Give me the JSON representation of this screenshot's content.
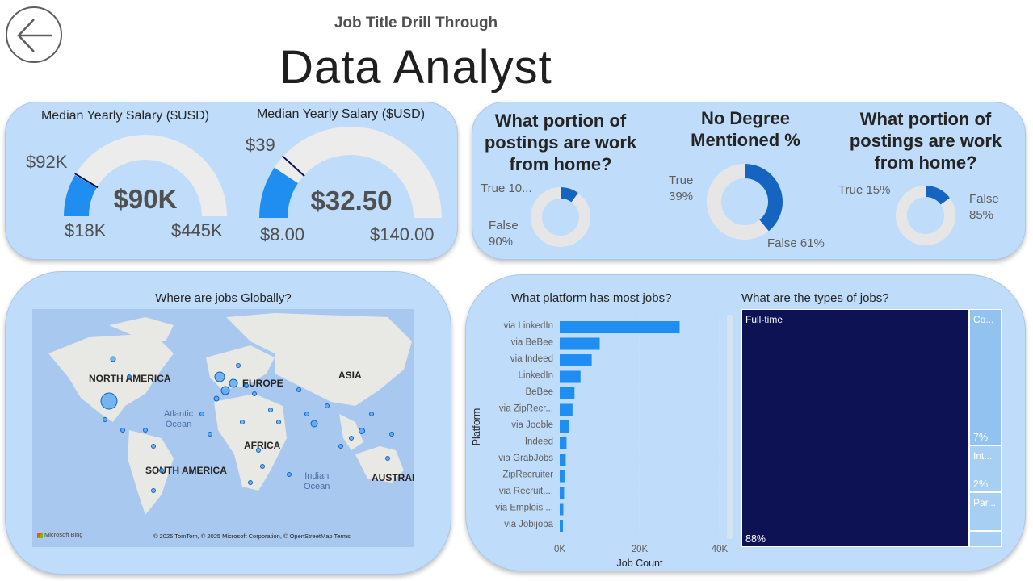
{
  "header": {
    "subtitle": "Job Title Drill Through",
    "title": "Data Analyst"
  },
  "gauges": [
    {
      "title": "Median Yearly Salary ($USD)",
      "value_label": "$90K",
      "target_label": "$92K",
      "min_label": "$18K",
      "max_label": "$445K",
      "value": 90000,
      "target": 92000,
      "min": 18000,
      "max": 445000
    },
    {
      "title": "Median Yearly Salary ($USD)",
      "value_label": "$32.50",
      "target_label": "$39",
      "min_label": "$8.00",
      "max_label": "$140.00",
      "value": 32.5,
      "target": 39,
      "min": 8,
      "max": 140
    }
  ],
  "donuts": [
    {
      "title_lines": [
        "What portion of",
        "postings are work",
        "from home?"
      ],
      "true_label": "True 10...",
      "false_label_1": "False",
      "false_label_2": "90%",
      "true_fraction": 0.1
    },
    {
      "title_lines": [
        "No Degree",
        "Mentioned %"
      ],
      "true_label_1": "True",
      "true_label_2": "39%",
      "false_label": "False 61%",
      "true_fraction": 0.39
    },
    {
      "title_lines": [
        "What portion of",
        "postings are work",
        "from home?"
      ],
      "true_label": "True 15%",
      "false_label_1": "False",
      "false_label_2": "85%",
      "true_fraction": 0.15
    }
  ],
  "map": {
    "title": "Where are jobs Globally?",
    "regions": [
      "NORTH AMERICA",
      "EUROPE",
      "ASIA",
      "AFRICA",
      "SOUTH AMERICA",
      "AUSTRAL"
    ],
    "oceans": [
      "Atlantic",
      "Ocean",
      "Indian",
      "Ocean"
    ],
    "attribution": "© 2025 TomTom, © 2025 Microsoft Corporation, © OpenStreetMap  Terms",
    "logo": "Microsoft Bing"
  },
  "platforms": {
    "title": "What platform has most jobs?",
    "y_label": "Platform",
    "x_label": "Job Count"
  },
  "chart_data": [
    {
      "type": "bar",
      "orientation": "horizontal",
      "title": "What platform has most jobs?",
      "xlabel": "Job Count",
      "ylabel": "Platform",
      "categories": [
        "via LinkedIn",
        "via BeBee",
        "via Indeed",
        "LinkedIn",
        "BeBee",
        "via ZipRecr...",
        "via Jooble",
        "Indeed",
        "via GrabJobs",
        "ZipRecruiter",
        "via Recruit....",
        "via Emplois ...",
        "via Jobijoba"
      ],
      "values": [
        30000,
        10000,
        8000,
        5200,
        3700,
        3200,
        2400,
        1700,
        1500,
        1200,
        1100,
        900,
        800
      ],
      "xticks": [
        "0K",
        "20K",
        "40K"
      ],
      "xlim": [
        0,
        40000
      ],
      "color": "#1f8ef0"
    },
    {
      "type": "treemap",
      "title": "What are the types of jobs?",
      "items": [
        {
          "label": "Full-time",
          "pct_label": "88%",
          "value": 88,
          "color": "#0c1254"
        },
        {
          "label": "Co...",
          "pct_label": "7%",
          "value": 7,
          "color": "#92c3f0"
        },
        {
          "label": "Int...",
          "pct_label": "2%",
          "value": 2,
          "color": "#a7cff4"
        },
        {
          "label": "Par...",
          "pct_label": "",
          "value": 2,
          "color": "#a7cff4"
        },
        {
          "label": "",
          "pct_label": "",
          "value": 1,
          "color": "#a7cff4"
        }
      ]
    }
  ],
  "colors": {
    "card_bg": "#bfdcfa",
    "accent": "#1f8ef0",
    "donut_true": "#1565c0",
    "donut_false": "#e6e6e6",
    "treemap_dark": "#0c1254"
  }
}
